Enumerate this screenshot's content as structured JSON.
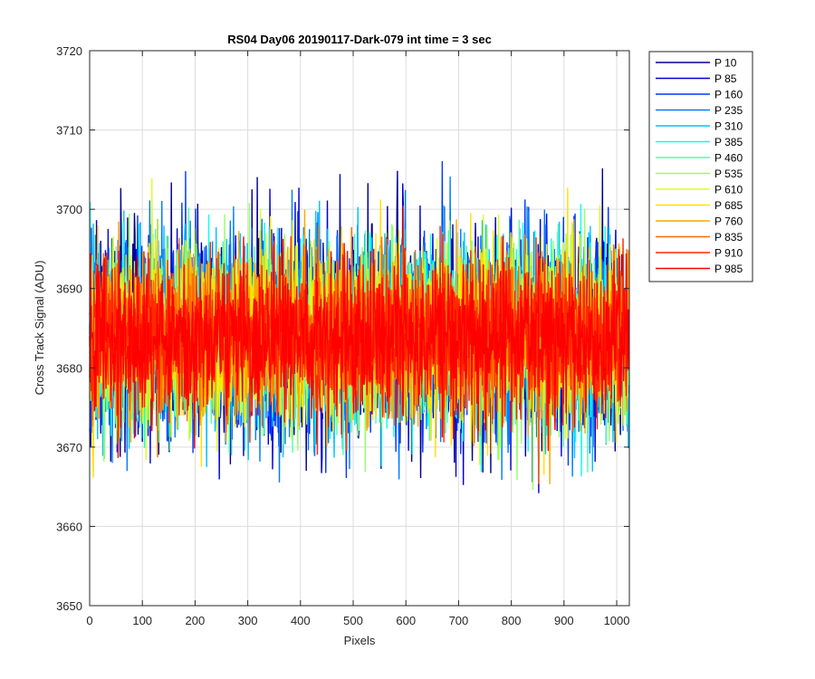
{
  "chart_data": {
    "type": "line",
    "title": "RS04 Day06 20190117-Dark-079 int time = 3 sec",
    "xlabel": "Pixels",
    "ylabel": "Cross Track Signal (ADU)",
    "xlim": [
      0,
      1024
    ],
    "ylim": [
      3650,
      3720
    ],
    "xticks": [
      0,
      100,
      200,
      300,
      400,
      500,
      600,
      700,
      800,
      900,
      1000
    ],
    "yticks": [
      3650,
      3660,
      3670,
      3680,
      3690,
      3700,
      3710,
      3720
    ],
    "grid": true,
    "legend_position": "outside-top-right",
    "x_points": 1024,
    "noise_center": 3684,
    "series": [
      {
        "name": "P 10",
        "color": "#00008f"
      },
      {
        "name": "P 85",
        "color": "#0000d5"
      },
      {
        "name": "P 160",
        "color": "#0038ff"
      },
      {
        "name": "P 235",
        "color": "#007cff"
      },
      {
        "name": "P 310",
        "color": "#00c1ff"
      },
      {
        "name": "P 385",
        "color": "#0dffef"
      },
      {
        "name": "P 460",
        "color": "#52ffab"
      },
      {
        "name": "P 535",
        "color": "#96ff67"
      },
      {
        "name": "P 610",
        "color": "#daff23"
      },
      {
        "name": "P 685",
        "color": "#ffe200"
      },
      {
        "name": "P 760",
        "color": "#ffa800"
      },
      {
        "name": "P 835",
        "color": "#ff6b00"
      },
      {
        "name": "P 910",
        "color": "#ff2800"
      },
      {
        "name": "P 985",
        "color": "#ff0000"
      }
    ]
  }
}
